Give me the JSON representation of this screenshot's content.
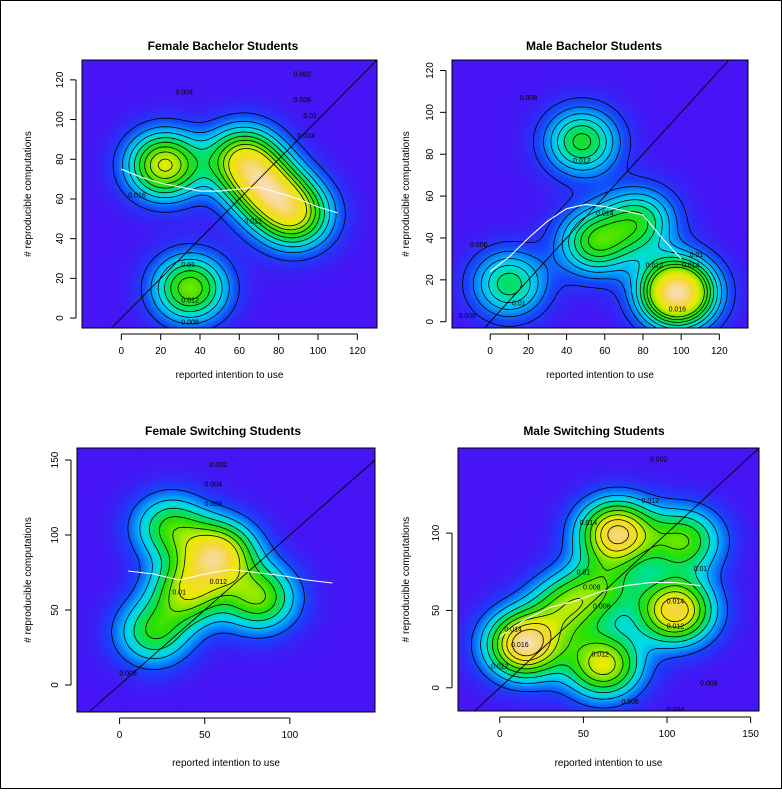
{
  "chart_data": [
    {
      "type": "heatmap",
      "title": "Female Bachelor Students",
      "xlabel": "reported intention to use",
      "ylabel": "# reproducible computations",
      "xlim": [
        -20,
        130
      ],
      "ylim": [
        -5,
        130
      ],
      "xticks": [
        0,
        20,
        40,
        60,
        80,
        100,
        120
      ],
      "yticks": [
        0,
        20,
        40,
        60,
        80,
        100,
        120
      ],
      "contour_levels": [
        0.002,
        0.004,
        0.006,
        0.008,
        0.01,
        0.012,
        0.014,
        0.016
      ],
      "contour_labels": [
        {
          "text": "0.002",
          "x": 92,
          "y": 123
        },
        {
          "text": "0.004",
          "x": 32,
          "y": 114
        },
        {
          "text": "0.006",
          "x": 92,
          "y": 110
        },
        {
          "text": "0.01",
          "x": 96,
          "y": 102
        },
        {
          "text": "0.014",
          "x": 94,
          "y": 92
        },
        {
          "text": "0.016",
          "x": 8,
          "y": 62
        },
        {
          "text": "0.012",
          "x": 67,
          "y": 49
        },
        {
          "text": "0.01",
          "x": 34,
          "y": 27
        },
        {
          "text": "0.012",
          "x": 35,
          "y": 9
        },
        {
          "text": "0.008",
          "x": 35,
          "y": -2
        }
      ],
      "density_peaks": [
        {
          "x": 22,
          "y": 77,
          "height": 0.0165
        },
        {
          "x": 62,
          "y": 80,
          "height": 0.0155
        },
        {
          "x": 88,
          "y": 52,
          "height": 0.0152
        },
        {
          "x": 35,
          "y": 15,
          "height": 0.0135
        },
        {
          "x": 74,
          "y": 65,
          "height": 0.0148
        }
      ],
      "diagonal": {
        "intercept": 0,
        "slope": 1
      },
      "smooth_line": {
        "x": [
          0,
          10,
          20,
          30,
          40,
          50,
          60,
          70,
          80,
          90,
          100,
          110
        ],
        "y": [
          75,
          71,
          68,
          66,
          64,
          64,
          65,
          66,
          63,
          60,
          56,
          53
        ]
      }
    },
    {
      "type": "heatmap",
      "title": "Male Bachelor Students",
      "xlabel": "reported intention to use",
      "ylabel": "# reproducible computations",
      "xlim": [
        -20,
        135
      ],
      "ylim": [
        -3,
        125
      ],
      "xticks": [
        0,
        20,
        40,
        60,
        80,
        100,
        120
      ],
      "yticks": [
        0,
        20,
        40,
        60,
        80,
        100,
        120
      ],
      "contour_levels": [
        0.002,
        0.004,
        0.006,
        0.008,
        0.01,
        0.012,
        0.014,
        0.016
      ],
      "contour_labels": [
        {
          "text": "0.008",
          "x": 20,
          "y": 107
        },
        {
          "text": "0.012",
          "x": 48,
          "y": 77
        },
        {
          "text": "0.014",
          "x": 60,
          "y": 52
        },
        {
          "text": "0.006",
          "x": -6,
          "y": 37
        },
        {
          "text": "0.012",
          "x": 86,
          "y": 27
        },
        {
          "text": "0.01",
          "x": 108,
          "y": 32
        },
        {
          "text": "0.014",
          "x": 105,
          "y": 27
        },
        {
          "text": "0.01",
          "x": 15,
          "y": 9
        },
        {
          "text": "0.016",
          "x": 98,
          "y": 6
        },
        {
          "text": "0.008",
          "x": -12,
          "y": 3
        }
      ],
      "density_peaks": [
        {
          "x": 98,
          "y": 14,
          "height": 0.0285
        },
        {
          "x": 55,
          "y": 38,
          "height": 0.0135
        },
        {
          "x": 48,
          "y": 86,
          "height": 0.0128
        },
        {
          "x": 10,
          "y": 18,
          "height": 0.0112
        },
        {
          "x": 78,
          "y": 48,
          "height": 0.0115
        }
      ],
      "diagonal": {
        "intercept": 0,
        "slope": 1
      },
      "smooth_line": {
        "x": [
          0,
          10,
          20,
          30,
          40,
          50,
          60,
          70,
          80,
          90,
          100
        ],
        "y": [
          24,
          31,
          40,
          48,
          54,
          56,
          55,
          53,
          51,
          40,
          30
        ]
      }
    },
    {
      "type": "heatmap",
      "title": "Female Switching Students",
      "xlabel": "reported intention to use",
      "ylabel": "# reproducible computations",
      "xlim": [
        -25,
        150
      ],
      "ylim": [
        -18,
        158
      ],
      "xticks": [
        0,
        50,
        100
      ],
      "yticks": [
        0,
        50,
        100,
        150
      ],
      "contour_levels": [
        0.002,
        0.004,
        0.006,
        0.008,
        0.01,
        0.012
      ],
      "contour_labels": [
        {
          "text": "0.002",
          "x": 58,
          "y": 147
        },
        {
          "text": "0.004",
          "x": 55,
          "y": 134
        },
        {
          "text": "0.008",
          "x": 55,
          "y": 121
        },
        {
          "text": "0.012",
          "x": 58,
          "y": 69
        },
        {
          "text": "0.01",
          "x": 35,
          "y": 62
        },
        {
          "text": "0.006",
          "x": 5,
          "y": 8
        }
      ],
      "density_peaks": [
        {
          "x": 58,
          "y": 87,
          "height": 0.0142
        },
        {
          "x": 40,
          "y": 62,
          "height": 0.0104
        },
        {
          "x": 82,
          "y": 58,
          "height": 0.0098
        },
        {
          "x": 20,
          "y": 35,
          "height": 0.0078
        },
        {
          "x": 30,
          "y": 105,
          "height": 0.0082
        }
      ],
      "diagonal": {
        "intercept": 0,
        "slope": 1
      },
      "smooth_line": {
        "x": [
          5,
          20,
          35,
          50,
          65,
          80,
          95,
          110,
          125
        ],
        "y": [
          76,
          74,
          70,
          74,
          77,
          75,
          73,
          70,
          68
        ]
      }
    },
    {
      "type": "heatmap",
      "title": "Male Switching Students",
      "xlabel": "reported intention to use",
      "ylabel": "# reproducible computations",
      "xlim": [
        -25,
        155
      ],
      "ylim": [
        -15,
        155
      ],
      "xticks": [
        0,
        50,
        100,
        150
      ],
      "yticks": [
        0,
        50,
        100
      ],
      "contour_levels": [
        0.002,
        0.004,
        0.006,
        0.008,
        0.01,
        0.012,
        0.014,
        0.016
      ],
      "contour_labels": [
        {
          "text": "0.002",
          "x": 95,
          "y": 148
        },
        {
          "text": "0.012",
          "x": 90,
          "y": 121
        },
        {
          "text": "0.014",
          "x": 53,
          "y": 107
        },
        {
          "text": "0.01",
          "x": 50,
          "y": 75
        },
        {
          "text": "0.008",
          "x": 55,
          "y": 65
        },
        {
          "text": "0.01",
          "x": 120,
          "y": 77
        },
        {
          "text": "0.006",
          "x": 61,
          "y": 53
        },
        {
          "text": "0.014",
          "x": 105,
          "y": 56
        },
        {
          "text": "0.012",
          "x": 105,
          "y": 40
        },
        {
          "text": "0.014",
          "x": 8,
          "y": 38
        },
        {
          "text": "0.016",
          "x": 12,
          "y": 28
        },
        {
          "text": "0.012",
          "x": 0,
          "y": 14
        },
        {
          "text": "0.012",
          "x": 60,
          "y": 22
        },
        {
          "text": "0.008",
          "x": 125,
          "y": 3
        },
        {
          "text": "0.006",
          "x": 78,
          "y": -9
        },
        {
          "text": "0.004",
          "x": 105,
          "y": -14
        }
      ],
      "density_peaks": [
        {
          "x": 15,
          "y": 28,
          "height": 0.0178
        },
        {
          "x": 70,
          "y": 100,
          "height": 0.0165
        },
        {
          "x": 105,
          "y": 50,
          "height": 0.0158
        },
        {
          "x": 62,
          "y": 15,
          "height": 0.0132
        },
        {
          "x": 40,
          "y": 52,
          "height": 0.0092
        },
        {
          "x": 110,
          "y": 95,
          "height": 0.0098
        },
        {
          "x": 62,
          "y": 65,
          "height": 0.0072
        }
      ],
      "diagonal": {
        "intercept": 0,
        "slope": 1
      },
      "smooth_line": {
        "x": [
          0,
          15,
          30,
          45,
          60,
          75,
          90,
          105,
          120
        ],
        "y": [
          33,
          44,
          52,
          56,
          62,
          66,
          68,
          68,
          66
        ]
      }
    }
  ]
}
